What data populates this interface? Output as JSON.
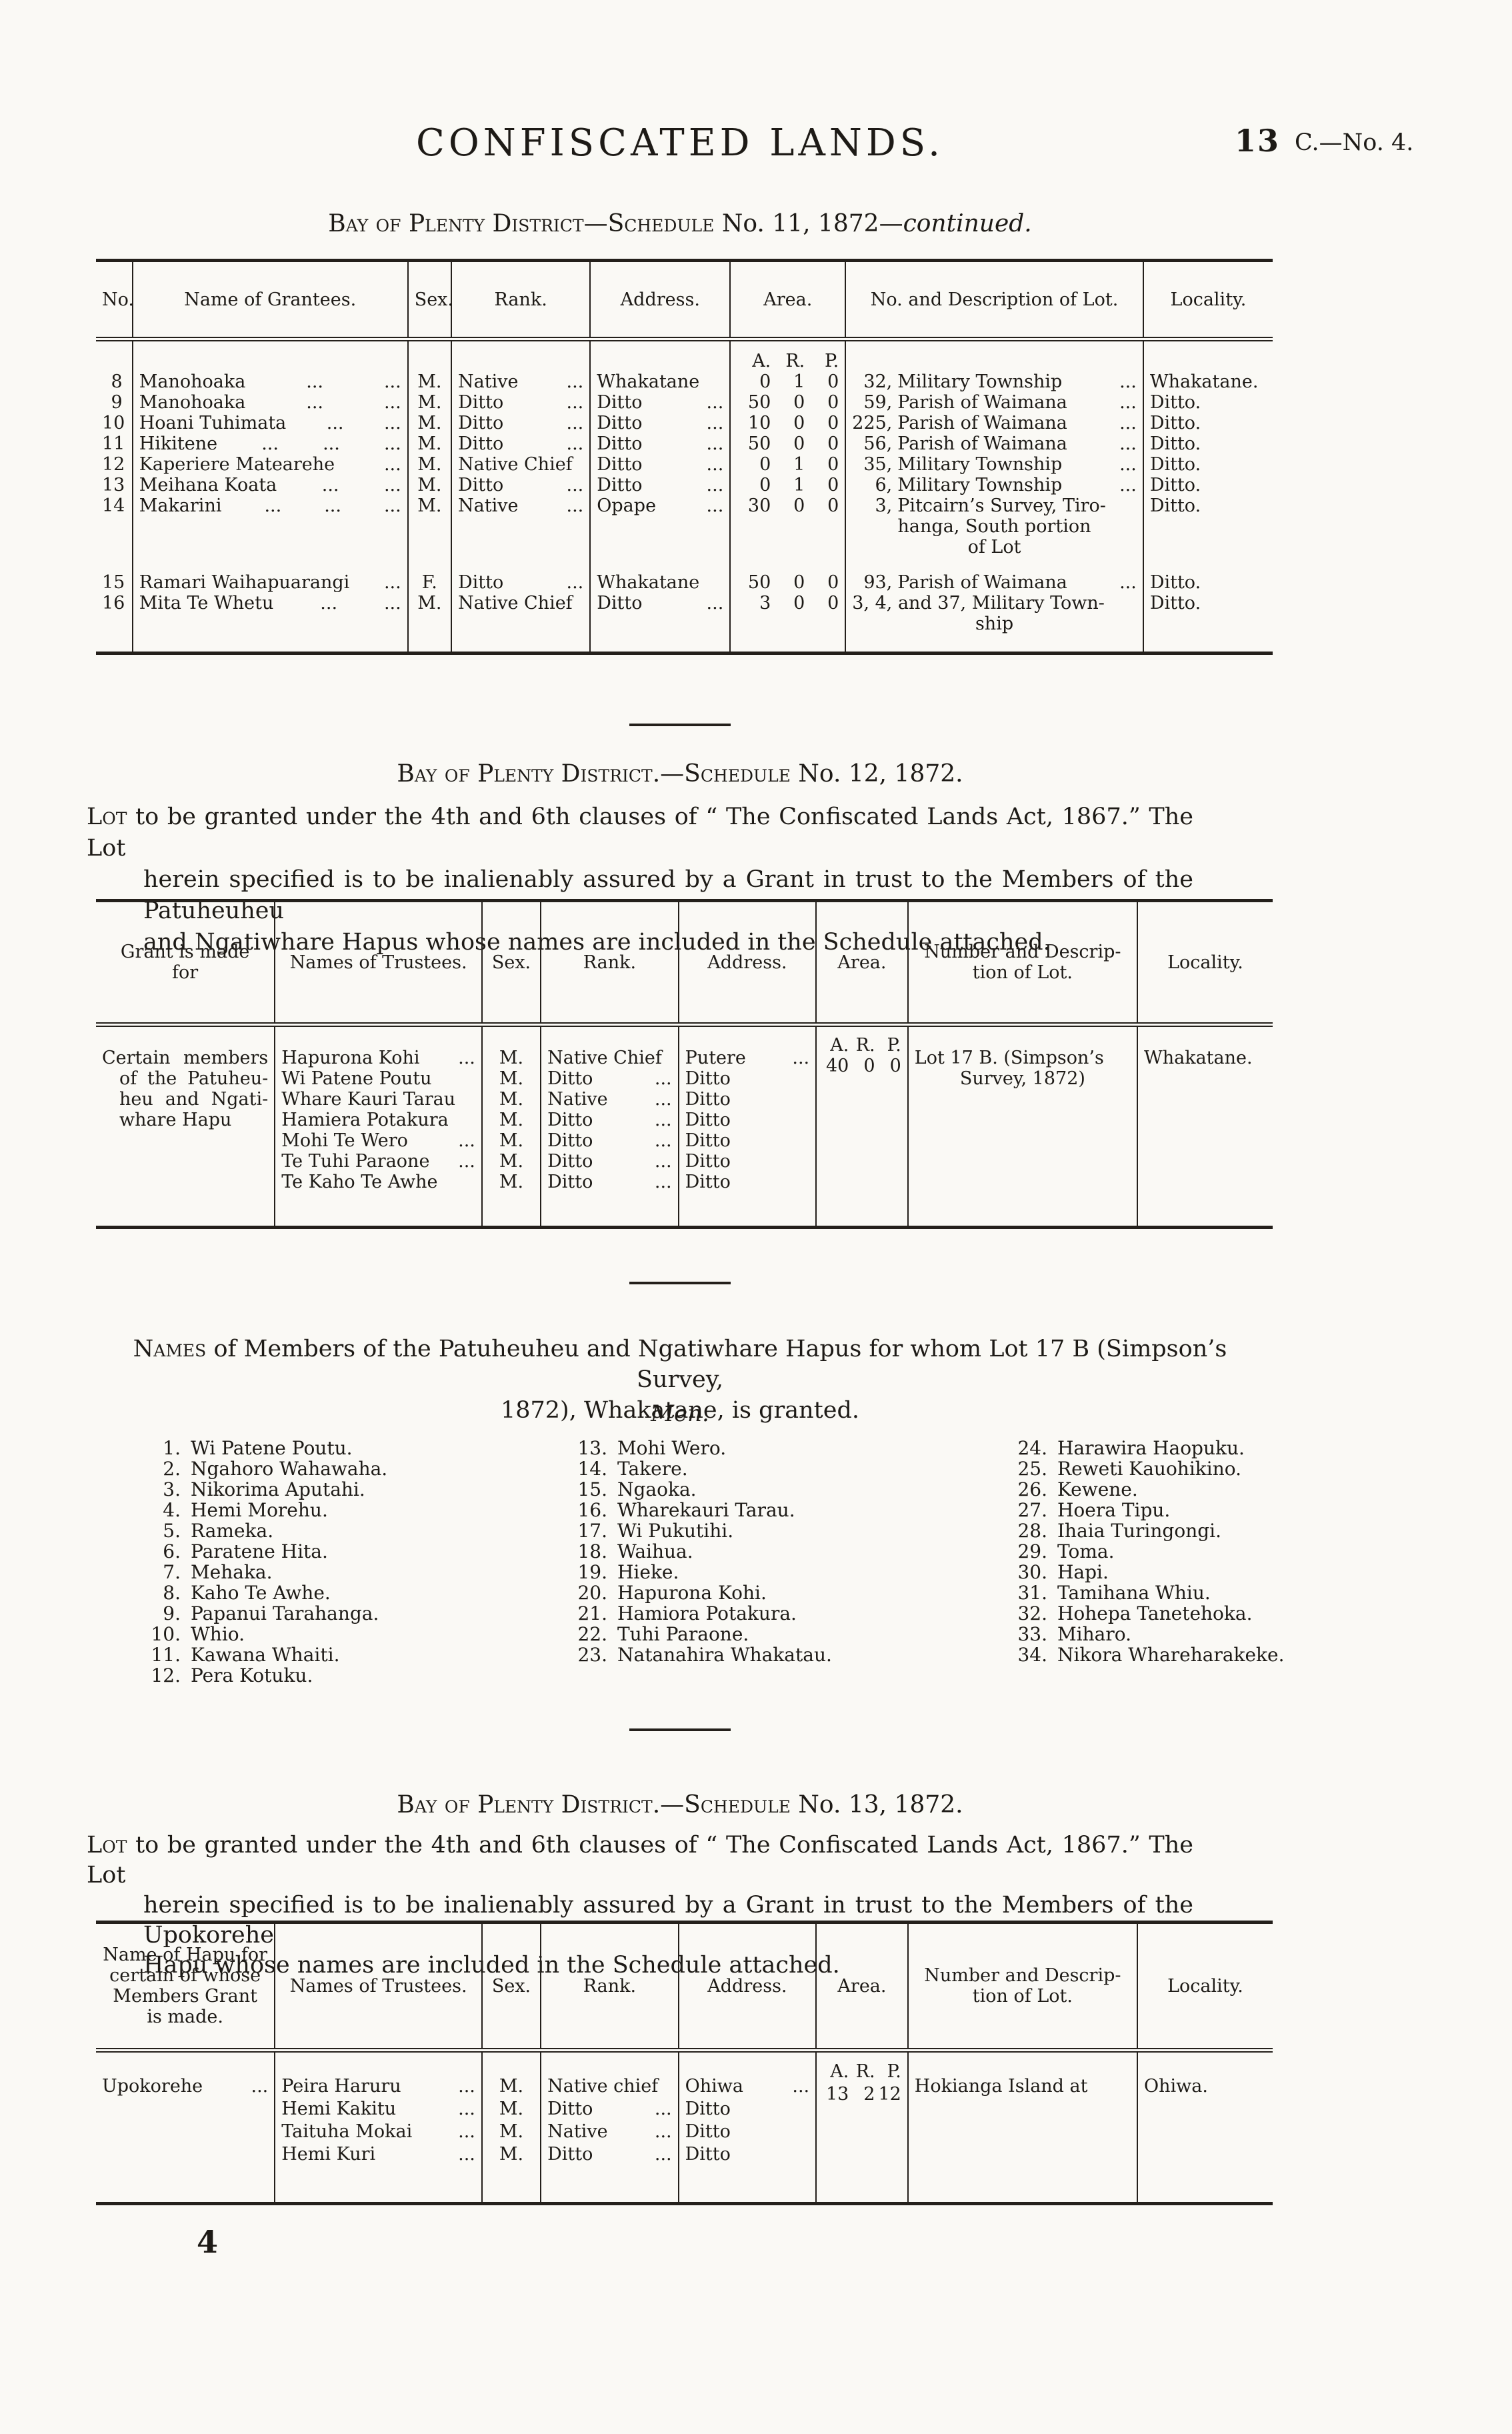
{
  "page": {
    "title": "CONFISCATED LANDS.",
    "page_number": "13",
    "doc_ref": "C.—No. 4.",
    "footer_mark": "4"
  },
  "schedule11": {
    "heading": {
      "smallcaps": "Bay of Plenty District—Schedule",
      "normal": " No. 11, 1872—",
      "italic": "continued."
    },
    "table": {
      "headers": [
        "No.",
        "Name of Grantees.",
        "Sex.",
        "Rank.",
        "Address.",
        "Area.",
        "No. and Description of Lot.",
        "Locality."
      ],
      "area_units": [
        "A.",
        "R.",
        "P."
      ],
      "rows": [
        {
          "no": "8",
          "name": "Manohoaka",
          "name_dots": [
            "...",
            "..."
          ],
          "sex": "M.",
          "rank": "Native",
          "rank_dots": "...",
          "address": "Whakatane",
          "address_dots": "",
          "area": [
            "0",
            "1",
            "0"
          ],
          "lot_num": "32,",
          "lot_text": "Military Township",
          "lot_dots": "...",
          "lot_cont": [],
          "locality": "Whakatane.",
          "gap_after": false
        },
        {
          "no": "9",
          "name": "Manohoaka",
          "name_dots": [
            "...",
            "..."
          ],
          "sex": "M.",
          "rank": "Ditto",
          "rank_dots": "...",
          "address": "Ditto",
          "address_dots": "...",
          "area": [
            "50",
            "0",
            "0"
          ],
          "lot_num": "59,",
          "lot_text": "Parish of Waimana",
          "lot_dots": "...",
          "lot_cont": [],
          "locality": "Ditto.",
          "gap_after": false
        },
        {
          "no": "10",
          "name": "Hoani Tuhimata",
          "name_dots": [
            "...",
            "..."
          ],
          "sex": "M.",
          "rank": "Ditto",
          "rank_dots": "...",
          "address": "Ditto",
          "address_dots": "...",
          "area": [
            "10",
            "0",
            "0"
          ],
          "lot_num": "225,",
          "lot_text": "Parish of Waimana",
          "lot_dots": "...",
          "lot_cont": [],
          "locality": "Ditto.",
          "gap_after": false
        },
        {
          "no": "11",
          "name": "Hikitene",
          "name_dots": [
            "...",
            "...",
            "..."
          ],
          "sex": "M.",
          "rank": "Ditto",
          "rank_dots": "...",
          "address": "Ditto",
          "address_dots": "...",
          "area": [
            "50",
            "0",
            "0"
          ],
          "lot_num": "56,",
          "lot_text": "Parish of Waimana",
          "lot_dots": "...",
          "lot_cont": [],
          "locality": "Ditto.",
          "gap_after": false
        },
        {
          "no": "12",
          "name": "Kaperiere Matearehe",
          "name_dots": [
            "..."
          ],
          "sex": "M.",
          "rank": "Native Chief",
          "rank_dots": "",
          "address": "Ditto",
          "address_dots": "...",
          "area": [
            "0",
            "1",
            "0"
          ],
          "lot_num": "35,",
          "lot_text": "Military Township",
          "lot_dots": "...",
          "lot_cont": [],
          "locality": "Ditto.",
          "gap_after": false
        },
        {
          "no": "13",
          "name": "Meihana Koata",
          "name_dots": [
            "...",
            "..."
          ],
          "sex": "M.",
          "rank": "Ditto",
          "rank_dots": "...",
          "address": "Ditto",
          "address_dots": "...",
          "area": [
            "0",
            "1",
            "0"
          ],
          "lot_num": "6,",
          "lot_text": "Military Township",
          "lot_dots": "...",
          "lot_cont": [],
          "locality": "Ditto.",
          "gap_after": false
        },
        {
          "no": "14",
          "name": "Makarini",
          "name_dots": [
            "...",
            "...",
            "..."
          ],
          "sex": "M.",
          "rank": "Native",
          "rank_dots": "...",
          "address": "Opape",
          "address_dots": "...",
          "area": [
            "30",
            "0",
            "0"
          ],
          "lot_num": "3,",
          "lot_text": "Pitcairn’s Survey, Tiro-",
          "lot_dots": "",
          "lot_cont": [
            "hanga, South portion",
            "of Lot"
          ],
          "locality": "Ditto.",
          "gap_after": true
        },
        {
          "no": "15",
          "name": "Ramari Waihapuarangi",
          "name_dots": [
            "..."
          ],
          "sex": "F.",
          "rank": "Ditto",
          "rank_dots": "...",
          "address": "Whakatane",
          "address_dots": "",
          "area": [
            "50",
            "0",
            "0"
          ],
          "lot_num": "93,",
          "lot_text": "Parish of Waimana",
          "lot_dots": "...",
          "lot_cont": [],
          "locality": "Ditto.",
          "gap_after": false
        },
        {
          "no": "16",
          "name": "Mita Te Whetu",
          "name_dots": [
            "...",
            "..."
          ],
          "sex": "M.",
          "rank": "Native Chief",
          "rank_dots": "",
          "address": "Ditto",
          "address_dots": "...",
          "area": [
            "3",
            "0",
            "0"
          ],
          "lot_num": "",
          "lot_text": "3, 4, and 37, Military Town-",
          "lot_dots": "",
          "lot_cont": [
            "ship"
          ],
          "locality": "Ditto.",
          "gap_after": false
        }
      ]
    }
  },
  "schedule12": {
    "heading": {
      "smallcaps": "Bay of Plenty District.—Schedule",
      "normal": " No. 12, 1872."
    },
    "paragraph": {
      "lead": "Lot",
      "line1_rest": " to be granted under the 4th and 6th clauses of “ The Confiscated Lands Act, 1867.”  The Lot",
      "line2": "herein specified is to be inalienably assured by a Grant in trust to the Members of the Patuheuheu",
      "line3": "and Ngatiwhare Hapus whose names are included in the Schedule attached."
    },
    "table": {
      "headers": [
        [
          "Grant is made",
          "for"
        ],
        [
          "Names of Trustees."
        ],
        [
          "Sex."
        ],
        [
          "Rank."
        ],
        [
          "Address."
        ],
        [
          "Area."
        ],
        [
          "Number and Descrip-",
          "tion of Lot."
        ],
        [
          "Locality."
        ]
      ],
      "area_units": [
        "A.",
        "R.",
        "P."
      ],
      "grant_line1": [
        "Certain",
        "members"
      ],
      "grant_cont": [
        "of the Patuheu-",
        "heu and Ngati-",
        "whare Hapu"
      ],
      "trustees": [
        [
          "Hapurona Kohi",
          "..."
        ],
        [
          "Wi Patene Poutu",
          ""
        ],
        [
          "Whare Kauri Tarau",
          ""
        ],
        [
          "Hamiera Potakura",
          ""
        ],
        [
          "Mohi Te Wero",
          "..."
        ],
        [
          "Te Tuhi Paraone",
          "..."
        ],
        [
          "Te Kaho Te Awhe",
          ""
        ]
      ],
      "sex": [
        "M.",
        "M.",
        "M.",
        "M.",
        "M.",
        "M.",
        "M."
      ],
      "ranks": [
        [
          "Native Chief",
          ""
        ],
        [
          "Ditto",
          "..."
        ],
        [
          "Native",
          "..."
        ],
        [
          "Ditto",
          "..."
        ],
        [
          "Ditto",
          "..."
        ],
        [
          "Ditto",
          "..."
        ],
        [
          "Ditto",
          "..."
        ]
      ],
      "addresses": [
        [
          "Putere",
          "..."
        ],
        [
          "Ditto",
          ""
        ],
        [
          "Ditto",
          ""
        ],
        [
          "Ditto",
          ""
        ],
        [
          "Ditto",
          ""
        ],
        [
          "Ditto",
          ""
        ],
        [
          "Ditto",
          ""
        ]
      ],
      "area": [
        "40",
        "0",
        "0"
      ],
      "lot_lines": [
        "Lot 17 B. (Simpson’s",
        "Survey, 1872)"
      ],
      "locality": "Whakatane."
    }
  },
  "names_section": {
    "heading": {
      "lead": "Names",
      "line1_rest": " of Members of the Patuheuheu and Ngatiwhare Hapus for whom Lot 17 B (Simpson’s Survey,",
      "line2": "1872), Whakatane, is granted."
    },
    "subheading": "Men.",
    "columns": [
      [
        {
          "n": "1.",
          "name": "Wi Patene Poutu."
        },
        {
          "n": "2.",
          "name": "Ngahoro Wahawaha."
        },
        {
          "n": "3.",
          "name": "Nikorima Aputahi."
        },
        {
          "n": "4.",
          "name": "Hemi Morehu."
        },
        {
          "n": "5.",
          "name": "Rameka."
        },
        {
          "n": "6.",
          "name": "Paratene Hita."
        },
        {
          "n": "7.",
          "name": "Mehaka."
        },
        {
          "n": "8.",
          "name": "Kaho Te Awhe."
        },
        {
          "n": "9.",
          "name": "Papanui Tarahanga."
        },
        {
          "n": "10.",
          "name": "Whio."
        },
        {
          "n": "11.",
          "name": "Kawana Whaiti."
        },
        {
          "n": "12.",
          "name": "Pera Kotuku."
        }
      ],
      [
        {
          "n": "13.",
          "name": "Mohi Wero."
        },
        {
          "n": "14.",
          "name": "Takere."
        },
        {
          "n": "15.",
          "name": "Ngaoka."
        },
        {
          "n": "16.",
          "name": "Wharekauri Tarau."
        },
        {
          "n": "17.",
          "name": "Wi Pukutihi."
        },
        {
          "n": "18.",
          "name": "Waihua."
        },
        {
          "n": "19.",
          "name": "Hieke."
        },
        {
          "n": "20.",
          "name": "Hapurona Kohi."
        },
        {
          "n": "21.",
          "name": "Hamiora Potakura."
        },
        {
          "n": "22.",
          "name": "Tuhi Paraone."
        },
        {
          "n": "23.",
          "name": "Natanahira Whakatau."
        }
      ],
      [
        {
          "n": "24.",
          "name": "Harawira Haopuku."
        },
        {
          "n": "25.",
          "name": "Reweti Kauohikino."
        },
        {
          "n": "26.",
          "name": "Kewene."
        },
        {
          "n": "27.",
          "name": "Hoera Tipu."
        },
        {
          "n": "28.",
          "name": "Ihaia Turingongi."
        },
        {
          "n": "29.",
          "name": "Toma."
        },
        {
          "n": "30.",
          "name": "Hapi."
        },
        {
          "n": "31.",
          "name": "Tamihana Whiu."
        },
        {
          "n": "32.",
          "name": "Hohepa Tanetehoka."
        },
        {
          "n": "33.",
          "name": "Miharo."
        },
        {
          "n": "34.",
          "name": "Nikora Whareharakeke."
        }
      ]
    ]
  },
  "schedule13": {
    "heading": {
      "smallcaps": "Bay of Plenty District.—Schedule",
      "normal": " No. 13, 1872."
    },
    "paragraph": {
      "lead": "Lot",
      "line1_rest": " to be granted under the 4th and 6th clauses of “ The Confiscated Lands Act, 1867.”  The Lot",
      "line2": "herein specified is to be inalienably assured by a Grant in trust to the Members of the Upokorehe",
      "line3": "Hapu whose names are included in the Schedule attached."
    },
    "table": {
      "headers": [
        [
          "Name of Hapu for",
          "certain of whose",
          "Members Grant",
          "is made."
        ],
        [
          "Names of Trustees."
        ],
        [
          "Sex."
        ],
        [
          "Rank."
        ],
        [
          "Address."
        ],
        [
          "Area."
        ],
        [
          "Number and Descrip-",
          "tion of Lot."
        ],
        [
          "Locality."
        ]
      ],
      "area_units": [
        "A.",
        "R.",
        "P."
      ],
      "hapu": [
        "Upokorehe",
        "..."
      ],
      "trustees": [
        [
          "Peira Haruru",
          "..."
        ],
        [
          "Hemi Kakitu",
          "..."
        ],
        [
          "Taituha Mokai",
          "..."
        ],
        [
          "Hemi Kuri",
          "..."
        ]
      ],
      "sex": [
        "M.",
        "M.",
        "M.",
        "M."
      ],
      "ranks": [
        [
          "Native chief",
          ""
        ],
        [
          "Ditto",
          "..."
        ],
        [
          "Native",
          "..."
        ],
        [
          "Ditto",
          "..."
        ]
      ],
      "addresses": [
        [
          "Ohiwa",
          "..."
        ],
        [
          "Ditto",
          ""
        ],
        [
          "Ditto",
          ""
        ],
        [
          "Ditto",
          ""
        ]
      ],
      "area": [
        "13",
        "2",
        "12"
      ],
      "lot_lines": [
        "Hokianga Island at"
      ],
      "locality": "Ohiwa."
    }
  }
}
